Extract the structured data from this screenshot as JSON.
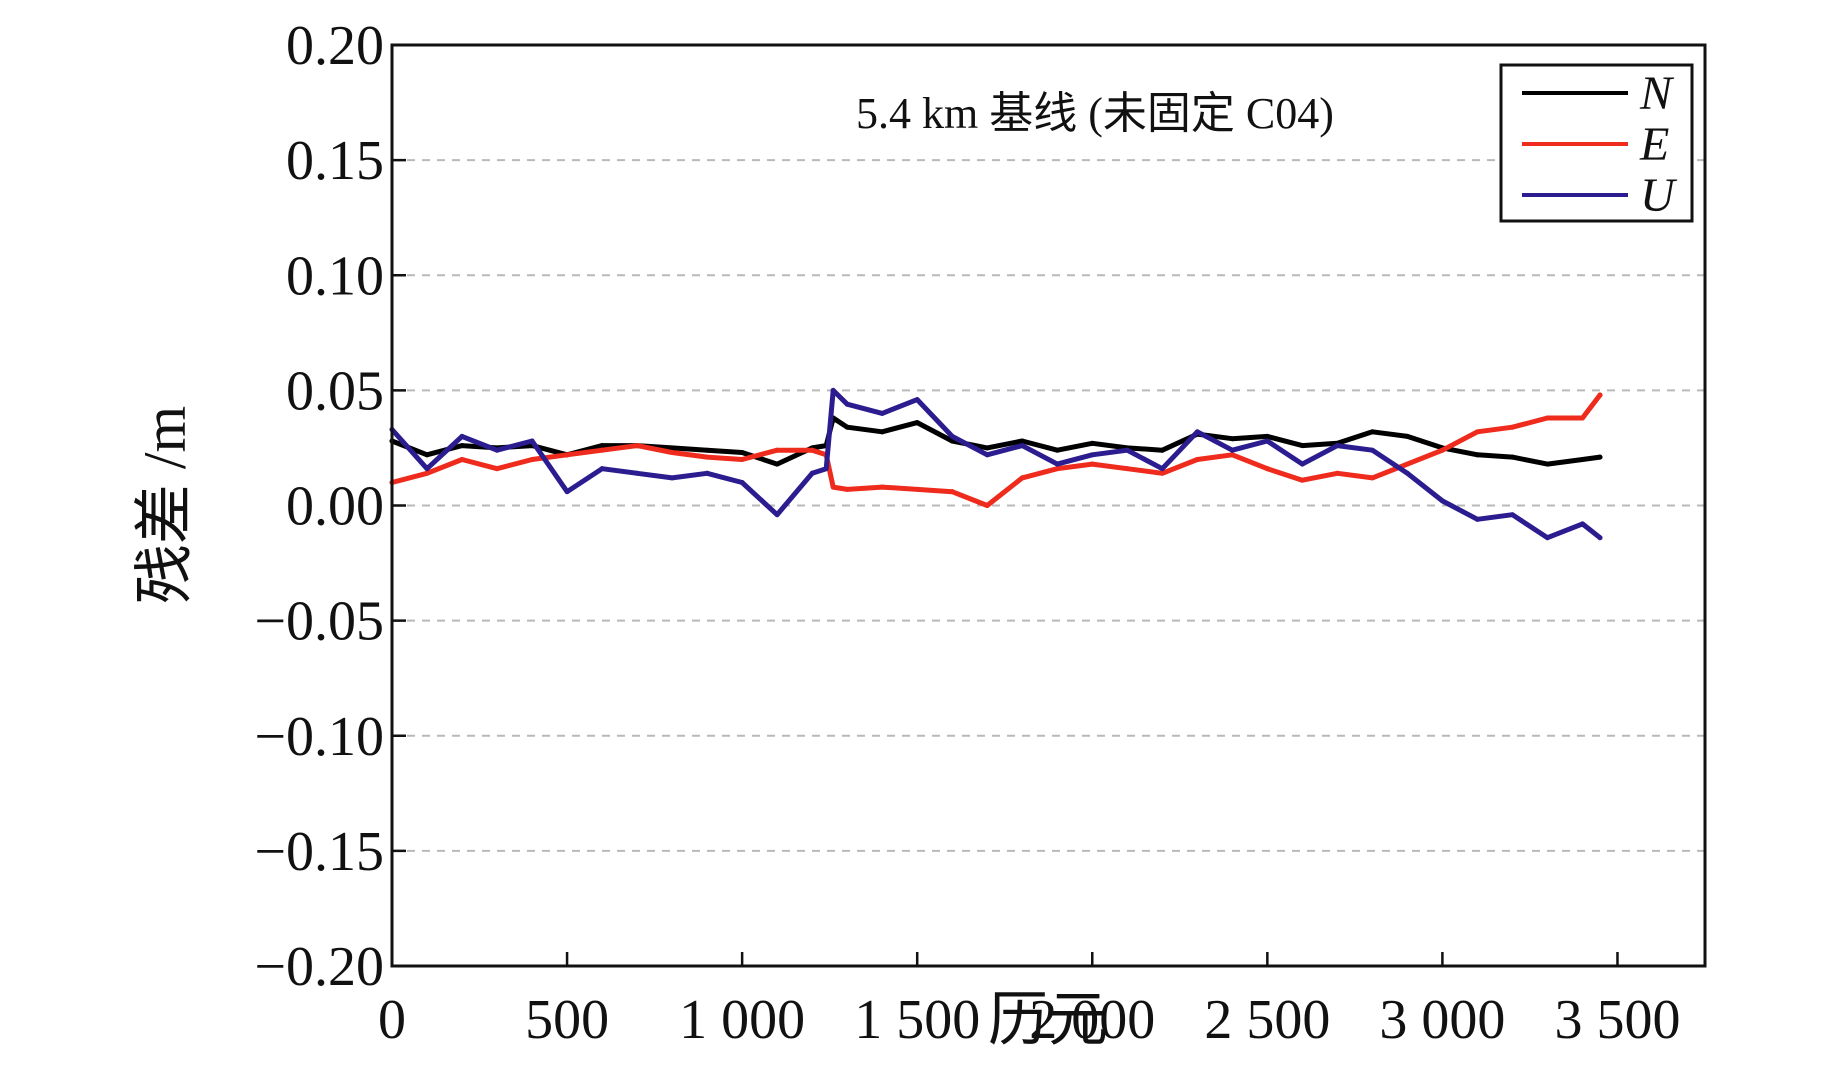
{
  "chart_data": {
    "type": "line",
    "annotation": "5.4 km 基线 (未固定 C04)",
    "xlabel": "历元",
    "ylabel": "残差 /m",
    "xlim": [
      0,
      3750
    ],
    "ylim": [
      -0.2,
      0.2
    ],
    "x_ticks": [
      0,
      500,
      1000,
      1500,
      2000,
      2500,
      3000,
      3500
    ],
    "x_tick_labels": [
      "0",
      "500",
      "1 000",
      "1 500",
      "2 000",
      "2 500",
      "3 000",
      "3 500"
    ],
    "y_ticks": [
      0.2,
      0.15,
      0.1,
      0.05,
      0.0,
      -0.05,
      -0.1,
      -0.15,
      -0.2
    ],
    "y_tick_labels": [
      "0.20",
      "0.15",
      "0.10",
      "0.05",
      "0.00",
      "−0.05",
      "−0.10",
      "−0.15",
      "−0.20"
    ],
    "grid": "y-dashed",
    "legend_position": "top-right",
    "x": [
      0,
      100,
      200,
      300,
      400,
      500,
      600,
      700,
      800,
      900,
      1000,
      1100,
      1200,
      1240,
      1260,
      1300,
      1400,
      1500,
      1600,
      1700,
      1800,
      1900,
      2000,
      2100,
      2200,
      2300,
      2400,
      2500,
      2600,
      2700,
      2800,
      2900,
      3000,
      3100,
      3200,
      3300,
      3400,
      3450
    ],
    "series": [
      {
        "name": "N",
        "color": "#000000",
        "values": [
          0.028,
          0.022,
          0.026,
          0.025,
          0.026,
          0.022,
          0.026,
          0.026,
          0.025,
          0.024,
          0.023,
          0.018,
          0.025,
          0.026,
          0.038,
          0.034,
          0.032,
          0.036,
          0.028,
          0.025,
          0.028,
          0.024,
          0.027,
          0.025,
          0.024,
          0.031,
          0.029,
          0.03,
          0.026,
          0.027,
          0.032,
          0.03,
          0.025,
          0.022,
          0.021,
          0.018,
          0.02,
          0.021
        ]
      },
      {
        "name": "E",
        "color": "#ee2b1c",
        "values": [
          0.01,
          0.014,
          0.02,
          0.016,
          0.02,
          0.022,
          0.024,
          0.026,
          0.023,
          0.021,
          0.02,
          0.024,
          0.024,
          0.022,
          0.008,
          0.007,
          0.008,
          0.007,
          0.006,
          0.0,
          0.012,
          0.016,
          0.018,
          0.016,
          0.014,
          0.02,
          0.022,
          0.016,
          0.011,
          0.014,
          0.012,
          0.018,
          0.024,
          0.032,
          0.034,
          0.038,
          0.038,
          0.048
        ]
      },
      {
        "name": "U",
        "color": "#2b1c8f",
        "values": [
          0.033,
          0.016,
          0.03,
          0.024,
          0.028,
          0.006,
          0.016,
          0.014,
          0.012,
          0.014,
          0.01,
          -0.004,
          0.014,
          0.016,
          0.05,
          0.044,
          0.04,
          0.046,
          0.03,
          0.022,
          0.026,
          0.018,
          0.022,
          0.024,
          0.016,
          0.032,
          0.024,
          0.028,
          0.018,
          0.026,
          0.024,
          0.014,
          0.002,
          -0.006,
          -0.004,
          -0.014,
          -0.008,
          -0.014
        ]
      }
    ]
  }
}
